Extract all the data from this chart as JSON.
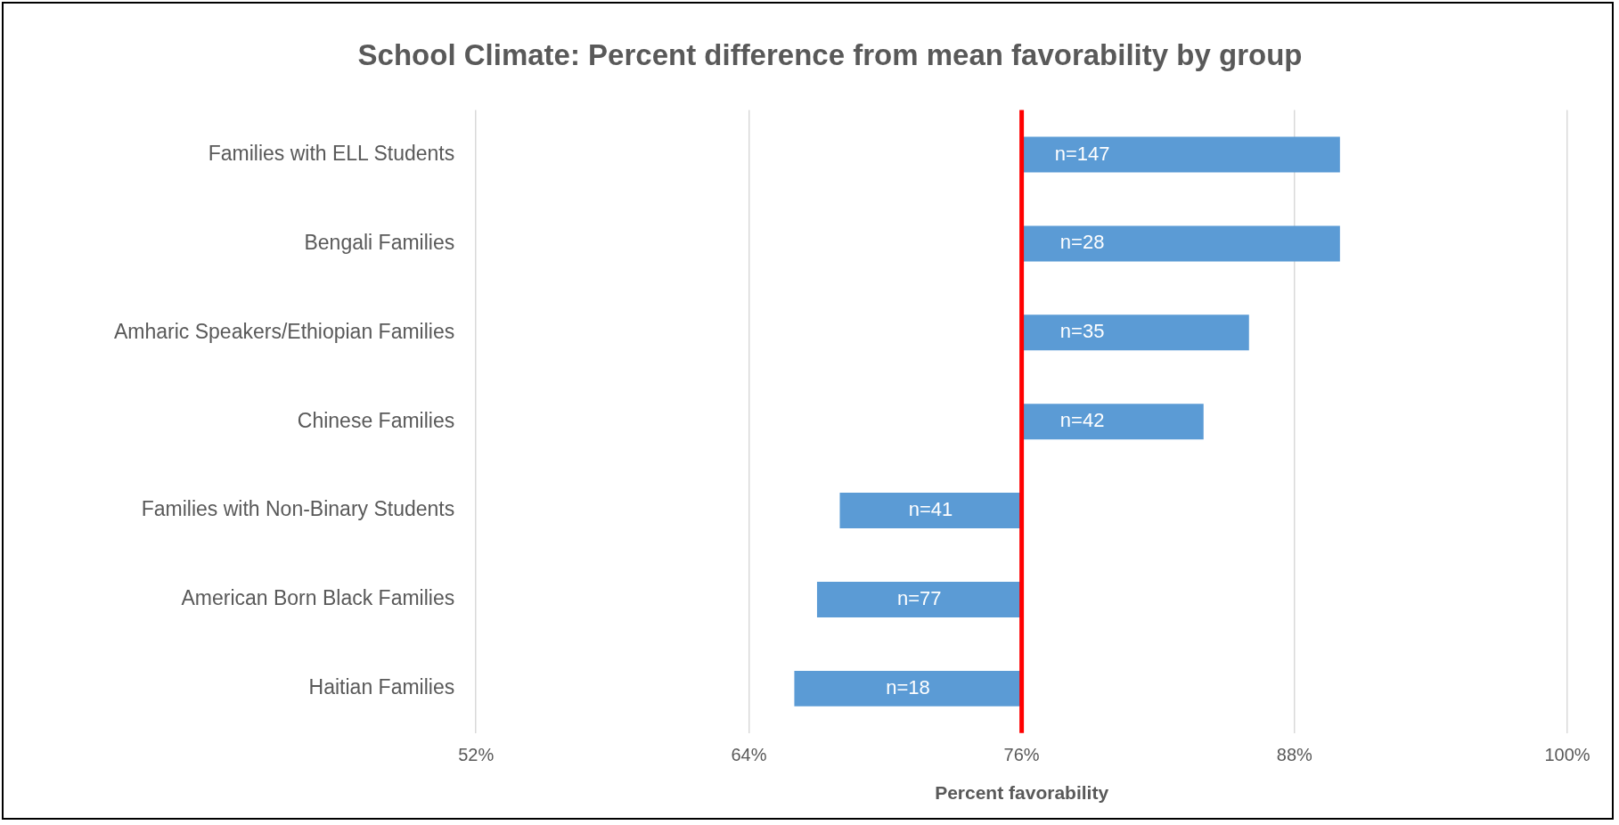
{
  "chart_data": {
    "type": "bar",
    "orientation": "horizontal",
    "title": "School Climate: Percent difference from mean favorability by group",
    "xlabel": "Percent favorability",
    "categories": [
      "Families with ELL Students",
      "Bengali Families",
      "Amharic Speakers/Ethiopian Families",
      "Chinese Families",
      "Families with Non-Binary Students",
      "American Born Black Families",
      "Haitian Families"
    ],
    "base": [
      76,
      76,
      76,
      76,
      76,
      76,
      76
    ],
    "values": [
      14,
      14,
      10,
      8,
      -8,
      -9,
      -10
    ],
    "annotations": [
      "n=147",
      "n=28",
      "n=35",
      "n=42",
      "n=41",
      "n=77",
      "n=18"
    ],
    "color": "#5b9bd5",
    "xlim": [
      52,
      100
    ],
    "xticks": [
      {
        "value": 52,
        "label": "52%"
      },
      {
        "value": 64,
        "label": "64%"
      },
      {
        "value": 76,
        "label": "76%"
      },
      {
        "value": 88,
        "label": "88%"
      },
      {
        "value": 100,
        "label": "100%"
      }
    ],
    "ref_lines": [
      {
        "axis": "x",
        "value": 76,
        "color": "#ff0000"
      }
    ],
    "grid": "x",
    "legend": false
  }
}
